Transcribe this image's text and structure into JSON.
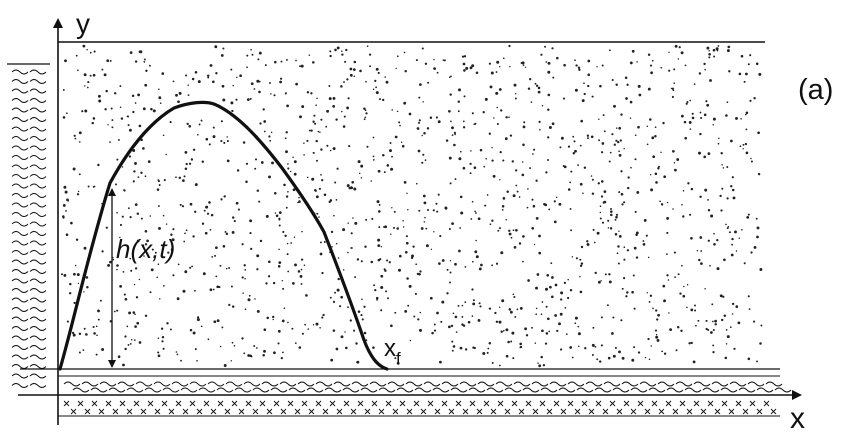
{
  "labels": {
    "panel": "(a)",
    "x_axis": "x",
    "y_axis": "y",
    "height": "h(x,t)",
    "front_base": "x",
    "front_sub": "f"
  },
  "colors": {
    "ink": "#111111",
    "background": "#ffffff"
  }
}
